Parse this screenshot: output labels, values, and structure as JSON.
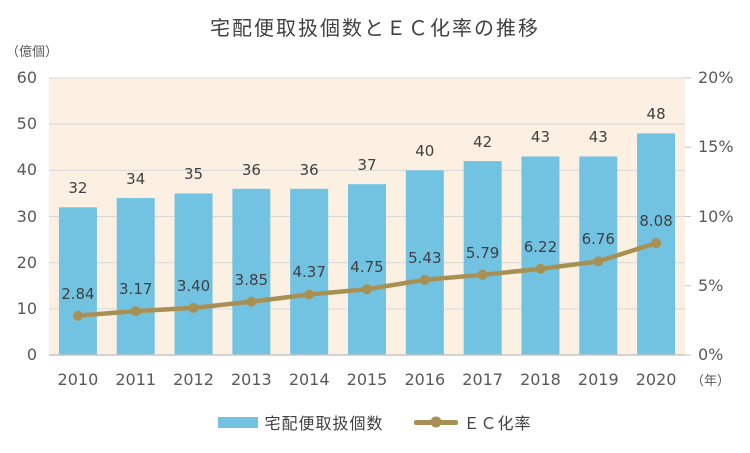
{
  "title": "宅配便取扱個数とＥＣ化率の推移",
  "axes": {
    "left_unit": "（億個）",
    "x_unit": "（年）"
  },
  "legend": {
    "bar_label": "宅配便取扱個数",
    "line_label": "ＥＣ化率"
  },
  "colors": {
    "bar": "#72C3E2",
    "line": "#A89054",
    "plot_bg": "#FCF0E3",
    "grid": "#D8D8D8",
    "axis_line": "#C6C6C6",
    "tick_text": "#595959",
    "value_text": "#404040"
  },
  "chart_data": {
    "type": "combo",
    "title": "宅配便取扱個数とＥＣ化率の推移",
    "categories": [
      "2010",
      "2011",
      "2012",
      "2013",
      "2014",
      "2015",
      "2016",
      "2017",
      "2018",
      "2019",
      "2020"
    ],
    "series": [
      {
        "name": "宅配便取扱個数",
        "chart_type": "bar",
        "axis": "left",
        "values": [
          32,
          34,
          35,
          36,
          36,
          37,
          40,
          42,
          43,
          43,
          48
        ],
        "labels": [
          "32",
          "34",
          "35",
          "36",
          "36",
          "37",
          "40",
          "42",
          "43",
          "43",
          "48"
        ],
        "color": "#72C3E2"
      },
      {
        "name": "ＥＣ化率",
        "chart_type": "line",
        "axis": "right",
        "values": [
          2.84,
          3.17,
          3.4,
          3.85,
          4.37,
          4.75,
          5.43,
          5.79,
          6.22,
          6.76,
          8.08
        ],
        "labels": [
          "2.84",
          "3.17",
          "3.40",
          "3.85",
          "4.37",
          "4.75",
          "5.43",
          "5.79",
          "6.22",
          "6.76",
          "8.08"
        ],
        "color": "#A89054"
      }
    ],
    "left_axis": {
      "min": 0,
      "max": 60,
      "ticks": [
        0,
        10,
        20,
        30,
        40,
        50,
        60
      ],
      "unit": "（億個）"
    },
    "right_axis": {
      "min": 0,
      "max": 20,
      "ticks": [
        0,
        5,
        10,
        15,
        20
      ],
      "tick_labels": [
        "0%",
        "5%",
        "10%",
        "15%",
        "20%"
      ]
    },
    "x_unit": "（年）",
    "grid": true,
    "legend_position": "bottom"
  }
}
